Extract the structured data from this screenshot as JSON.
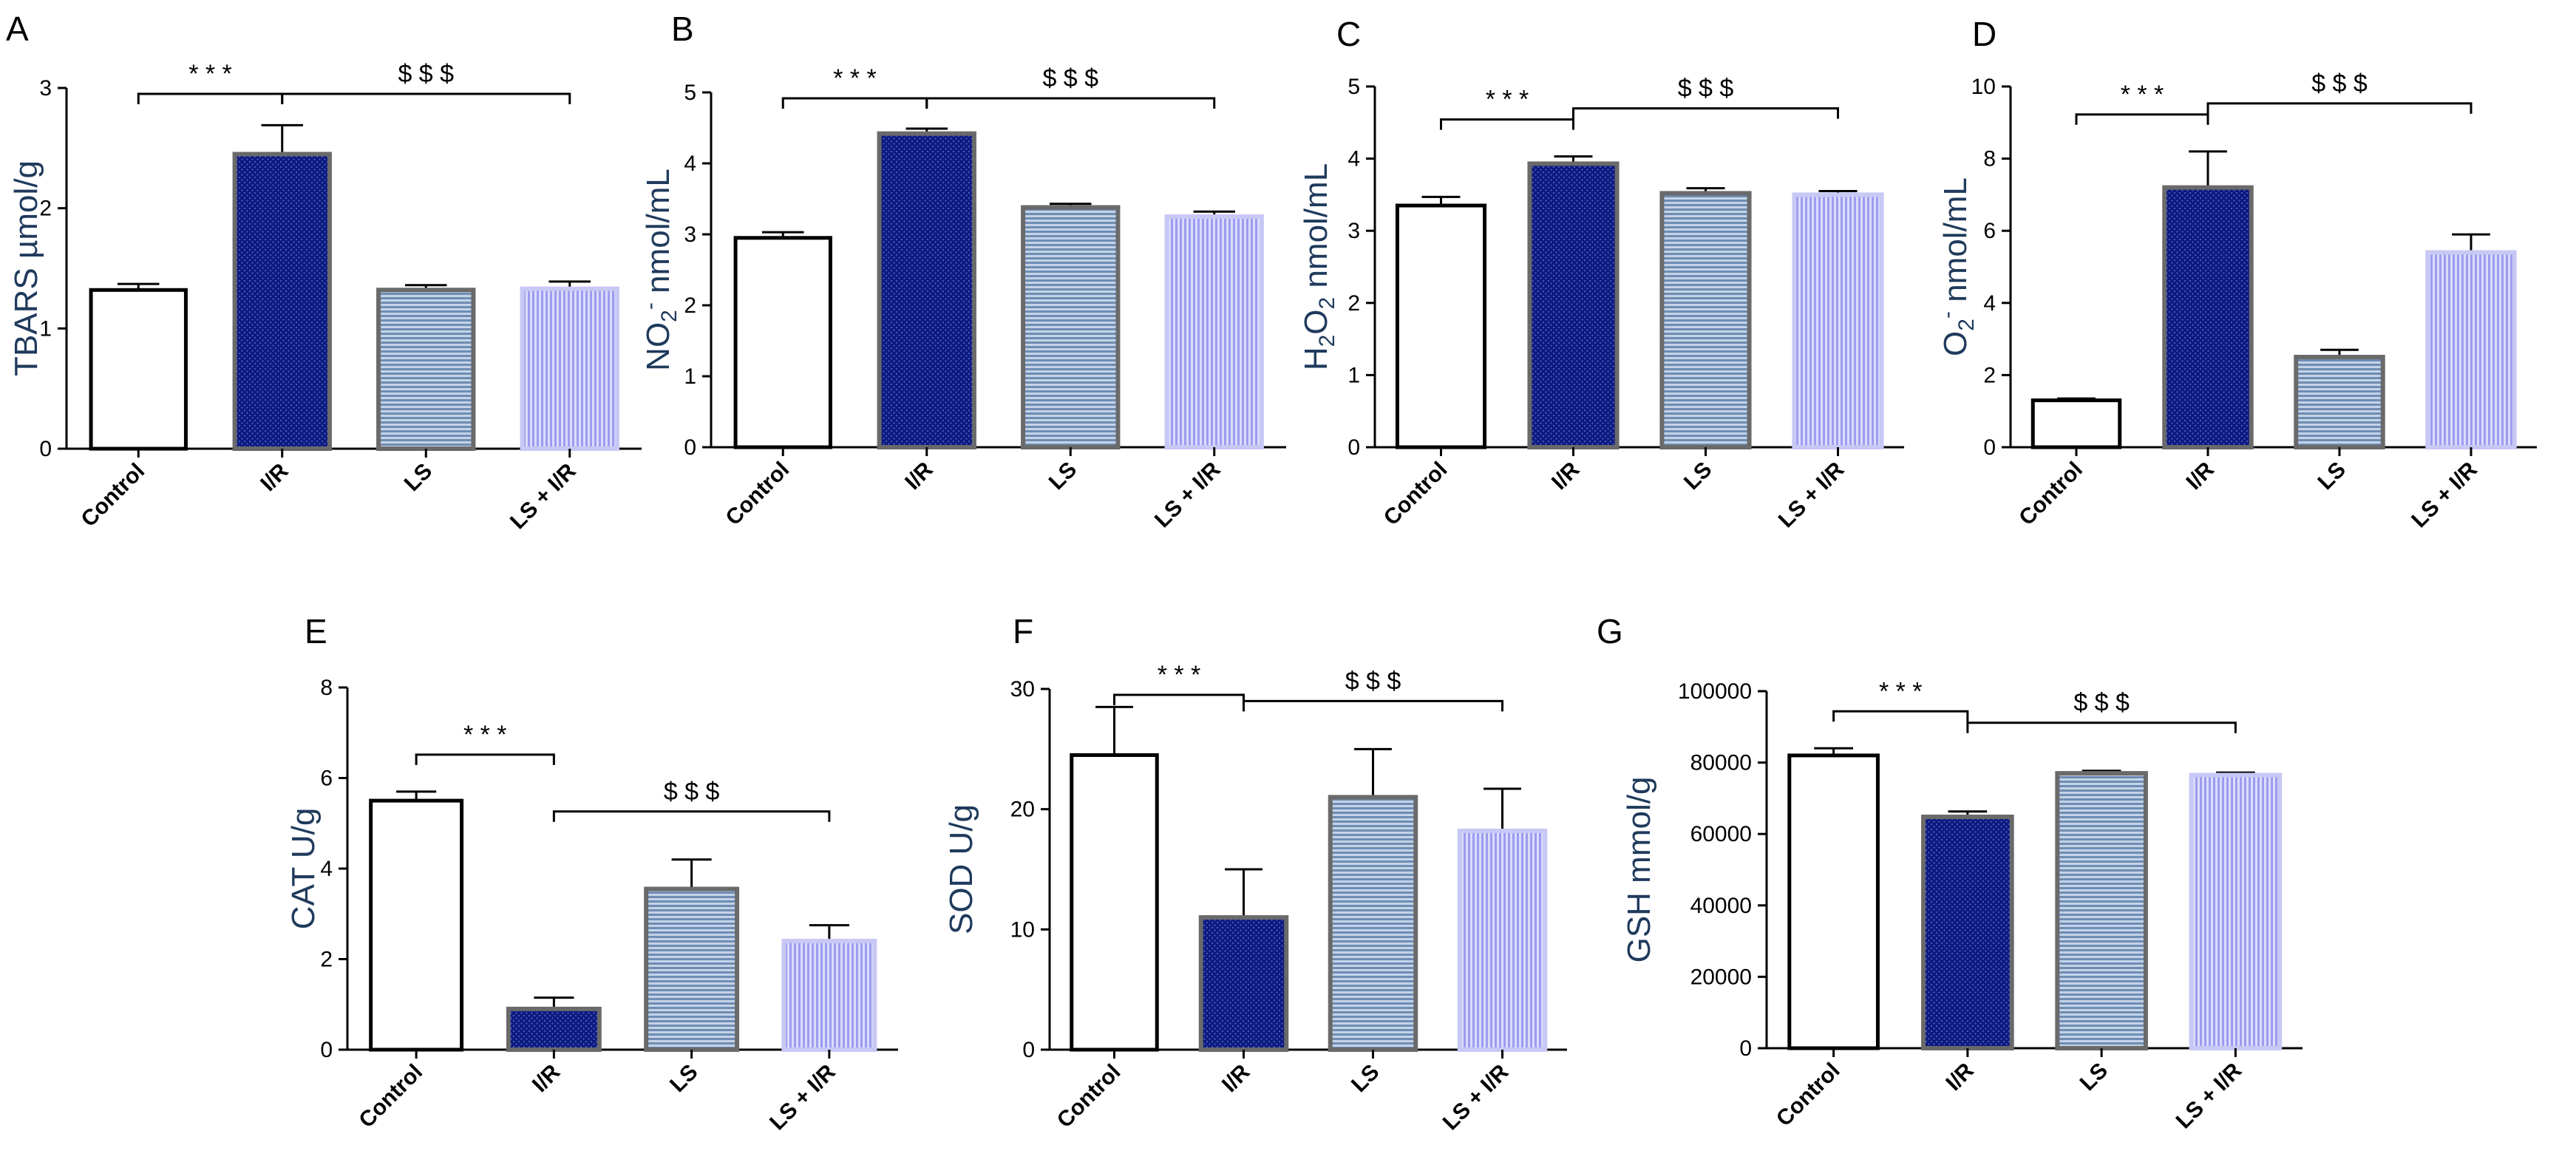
{
  "figure": {
    "colors": {
      "Control": "#ffffff",
      "I/R": "#0d1a7e",
      "LS": "#7a97ba",
      "LS + I/R": "#a9a9f3",
      "border_bar": "#888888",
      "axis": "#000000"
    }
  },
  "chart_data": [
    {
      "panel": "A",
      "type": "bar",
      "categories": [
        "Control",
        "I/R",
        "LS",
        "LS + I/R"
      ],
      "values": [
        1.32,
        2.45,
        1.32,
        1.33
      ],
      "errors": [
        0.05,
        0.24,
        0.04,
        0.06
      ],
      "ylabel": "TBARS µmol/g",
      "ylabel_parts": [
        "TBARS µmol/g"
      ],
      "ylim": [
        0,
        3
      ],
      "yticks": [
        "0",
        "1",
        "2",
        "3"
      ],
      "significance": [
        {
          "label": "* * *",
          "from": 0,
          "to": 1
        },
        {
          "label": "$ $ $",
          "from": 1,
          "to": 3
        }
      ]
    },
    {
      "panel": "B",
      "type": "bar",
      "categories": [
        "Control",
        "I/R",
        "LS",
        "LS + I/R"
      ],
      "values": [
        2.95,
        4.42,
        3.38,
        3.25
      ],
      "errors": [
        0.08,
        0.07,
        0.05,
        0.07
      ],
      "ylabel": "NO2- nmol/mL",
      "ylabel_parts": [
        "NO",
        "2",
        "-",
        " nmol/mL"
      ],
      "ylim": [
        0,
        5
      ],
      "yticks": [
        "0",
        "1",
        "2",
        "3",
        "4",
        "5"
      ],
      "significance": [
        {
          "label": "* * *",
          "from": 0,
          "to": 1
        },
        {
          "label": "$ $ $",
          "from": 1,
          "to": 3
        }
      ]
    },
    {
      "panel": "C",
      "type": "bar",
      "categories": [
        "Control",
        "I/R",
        "LS",
        "LS + I/R"
      ],
      "values": [
        3.35,
        3.93,
        3.52,
        3.5
      ],
      "errors": [
        0.12,
        0.1,
        0.07,
        0.05
      ],
      "ylabel": "H2O2 nmol/mL",
      "ylabel_parts": [
        "H",
        "2",
        "O",
        "2",
        " nmol/mL"
      ],
      "ylim": [
        0,
        5
      ],
      "yticks": [
        "0",
        "1",
        "2",
        "3",
        "4",
        "5"
      ],
      "significance": [
        {
          "label": "* * *",
          "from": 0,
          "to": 1
        },
        {
          "label": "$ $ $",
          "from": 1,
          "to": 3
        }
      ]
    },
    {
      "panel": "D",
      "type": "bar",
      "categories": [
        "Control",
        "I/R",
        "LS",
        "LS + I/R"
      ],
      "values": [
        1.3,
        7.2,
        2.5,
        5.4
      ],
      "errors": [
        0.05,
        1.0,
        0.2,
        0.5
      ],
      "ylabel": "O2- nmol/mL",
      "ylabel_parts": [
        "O",
        "2",
        "-",
        " nmol/mL"
      ],
      "ylim": [
        0,
        10
      ],
      "yticks": [
        "0",
        "2",
        "4",
        "6",
        "8",
        "10"
      ],
      "significance": [
        {
          "label": "* * *",
          "from": 0,
          "to": 1
        },
        {
          "label": "$ $ $",
          "from": 1,
          "to": 3
        }
      ]
    },
    {
      "panel": "E",
      "type": "bar",
      "categories": [
        "Control",
        "I/R",
        "LS",
        "LS + I/R"
      ],
      "values": [
        5.5,
        0.9,
        3.55,
        2.4
      ],
      "errors": [
        0.2,
        0.25,
        0.65,
        0.35
      ],
      "ylabel": "CAT U/g",
      "ylabel_parts": [
        "CAT U/g"
      ],
      "ylim": [
        0,
        8
      ],
      "yticks": [
        "0",
        "2",
        "4",
        "6",
        "8"
      ],
      "significance": [
        {
          "label": "* * *",
          "from": 0,
          "to": 1
        },
        {
          "label": "$ $ $",
          "from": 1,
          "to": 3
        }
      ]
    },
    {
      "panel": "F",
      "type": "bar",
      "categories": [
        "Control",
        "I/R",
        "LS",
        "LS + I/R"
      ],
      "values": [
        24.5,
        11,
        21,
        18.2
      ],
      "errors": [
        4,
        4,
        4,
        3.5
      ],
      "ylabel": "SOD U/g",
      "ylabel_parts": [
        "SOD U/g"
      ],
      "ylim": [
        0,
        30
      ],
      "yticks": [
        "0",
        "10",
        "20",
        "30"
      ],
      "significance": [
        {
          "label": "* * *",
          "from": 0,
          "to": 1
        },
        {
          "label": "$ $ $",
          "from": 1,
          "to": 3
        }
      ]
    },
    {
      "panel": "G",
      "type": "bar",
      "categories": [
        "Control",
        "I/R",
        "LS",
        "LS + I/R"
      ],
      "values": [
        82000,
        64800,
        77000,
        76500
      ],
      "errors": [
        2000,
        1500,
        700,
        700
      ],
      "ylabel": "GSH mmol/g",
      "ylabel_parts": [
        "GSH mmol/g"
      ],
      "ylim": [
        0,
        100000
      ],
      "yticks": [
        "0",
        "20000",
        "40000",
        "60000",
        "80000",
        "100000"
      ],
      "significance": [
        {
          "label": "* * *",
          "from": 0,
          "to": 1
        },
        {
          "label": "$ $ $",
          "from": 1,
          "to": 3
        }
      ]
    }
  ]
}
